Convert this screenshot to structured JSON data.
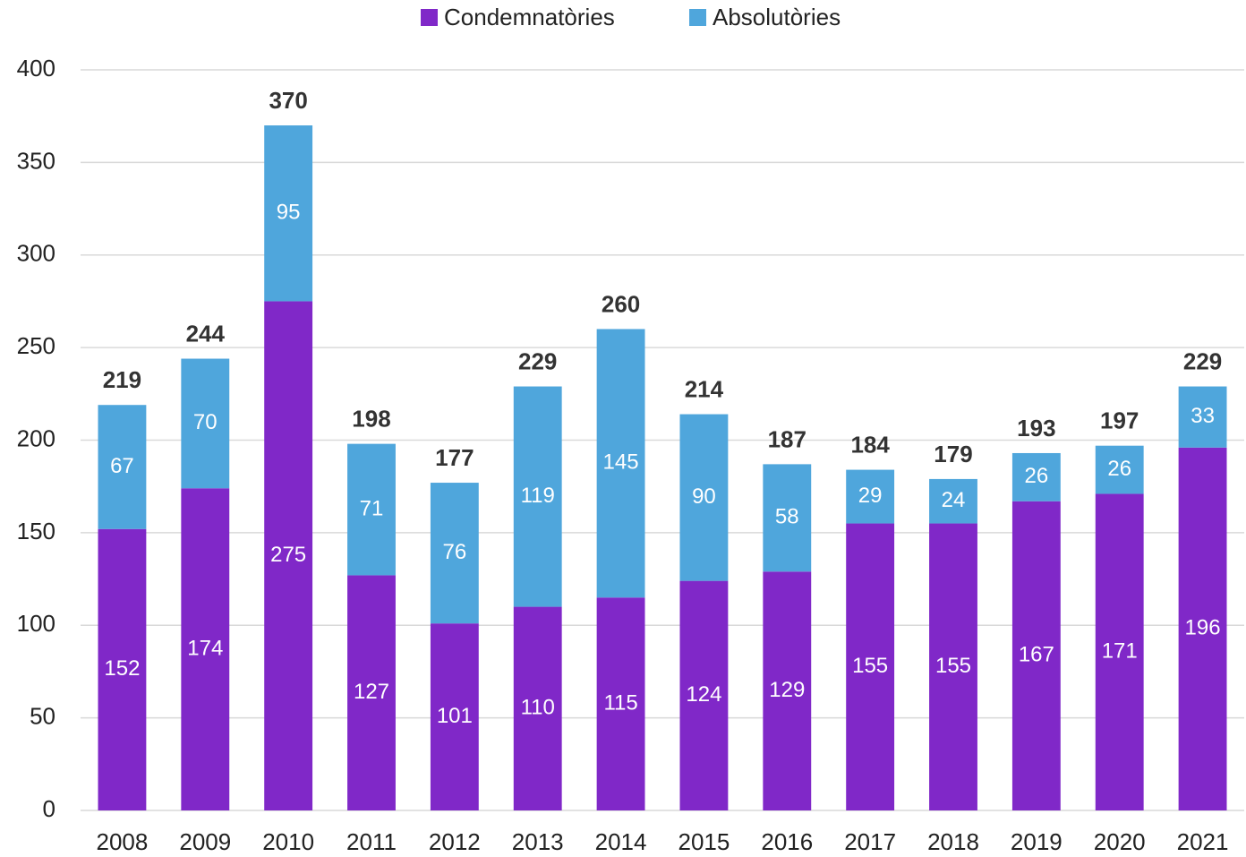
{
  "chart_data": {
    "type": "stacked_bar",
    "categories": [
      "2008",
      "2009",
      "2010",
      "2011",
      "2012",
      "2013",
      "2014",
      "2015",
      "2016",
      "2017",
      "2018",
      "2019",
      "2020",
      "2021"
    ],
    "series": [
      {
        "name": "Condemnatòries",
        "color": "#8028c8",
        "values": [
          152,
          174,
          275,
          127,
          101,
          110,
          115,
          124,
          129,
          155,
          155,
          167,
          171,
          196
        ]
      },
      {
        "name": "Absolutòries",
        "color": "#4fa6dc",
        "values": [
          67,
          70,
          95,
          71,
          76,
          119,
          145,
          90,
          58,
          29,
          24,
          26,
          26,
          33
        ]
      }
    ],
    "totals": [
      219,
      244,
      370,
      198,
      177,
      229,
      260,
      214,
      187,
      184,
      179,
      193,
      197,
      229
    ],
    "ylim": [
      0,
      400
    ],
    "yticks": [
      0,
      50,
      100,
      150,
      200,
      250,
      300,
      350,
      400
    ],
    "grid": true,
    "legend": "top"
  }
}
